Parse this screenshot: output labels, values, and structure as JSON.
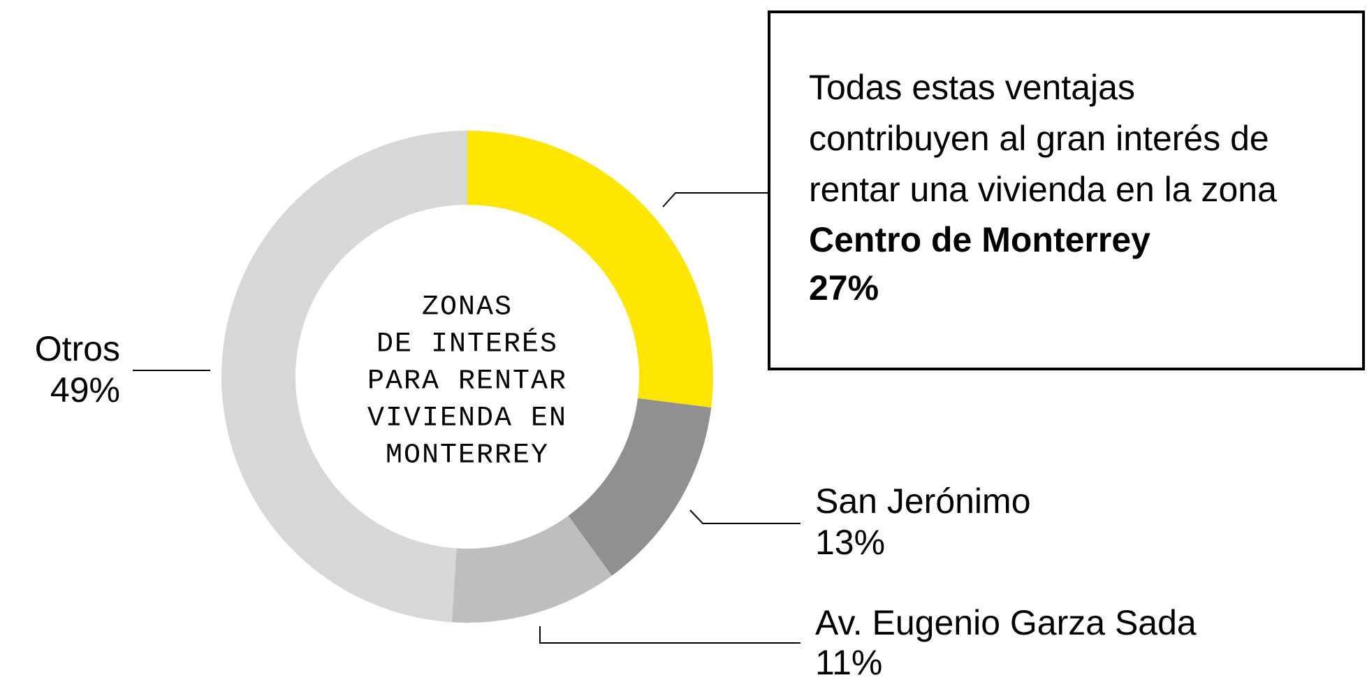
{
  "chart_data": {
    "type": "pie",
    "donut": true,
    "center_title": [
      "ZONAS",
      "DE INTERÉS",
      "PARA RENTAR",
      "VIVIENDA EN",
      "MONTERREY"
    ],
    "categories": [
      "Centro de Monterrey",
      "San Jerónimo",
      "Av. Eugenio Garza Sada",
      "Otros"
    ],
    "values": [
      27,
      13,
      11,
      49
    ],
    "value_labels": [
      "27%",
      "13%",
      "11%",
      "49%"
    ],
    "colors": [
      "#ffe600",
      "#909090",
      "#bebebe",
      "#d7d7d7"
    ],
    "annotation": [
      "Todas estas ventajas",
      "contribuyen al gran interés de",
      "rentar una vivienda en la zona"
    ]
  }
}
